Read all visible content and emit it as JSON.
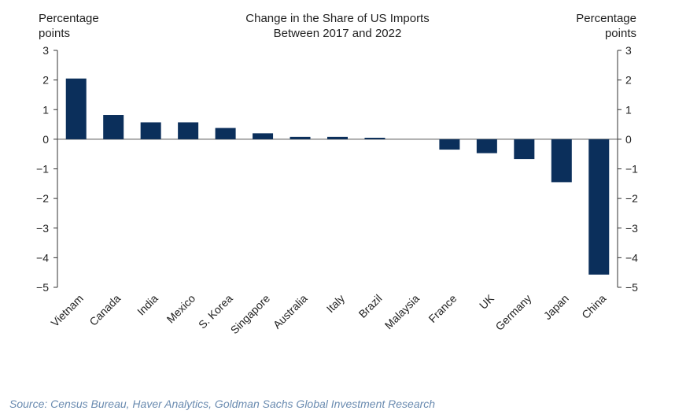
{
  "chart_data": {
    "type": "bar",
    "title_line1": "Change in the Share of US Imports",
    "title_line2": "Between 2017 and 2022",
    "ylabel_left_line1": "Percentage",
    "ylabel_left_line2": "points",
    "ylabel_right_line1": "Percentage",
    "ylabel_right_line2": "points",
    "categories": [
      "Vietnam",
      "Canada",
      "India",
      "Mexico",
      "S. Korea",
      "Singapore",
      "Australia",
      "Italy",
      "Brazil",
      "Malaysia",
      "France",
      "UK",
      "Germany",
      "Japan",
      "China"
    ],
    "values": [
      2.05,
      0.82,
      0.57,
      0.57,
      0.38,
      0.2,
      0.08,
      0.08,
      0.05,
      0.0,
      -0.35,
      -0.47,
      -0.67,
      -1.45,
      -4.57
    ],
    "ylim": [
      -5,
      3
    ],
    "yticks": [
      3,
      2,
      1,
      0,
      -1,
      -2,
      -3,
      -4,
      -5
    ],
    "ytick_labels": [
      "3",
      "2",
      "1",
      "0",
      "−1",
      "−2",
      "−3",
      "−4",
      "−5"
    ],
    "bar_color": "#0b2f5b",
    "grid": false,
    "legend": "none"
  },
  "source": "Source: Census Bureau, Haver Analytics, Goldman Sachs Global Investment Research"
}
